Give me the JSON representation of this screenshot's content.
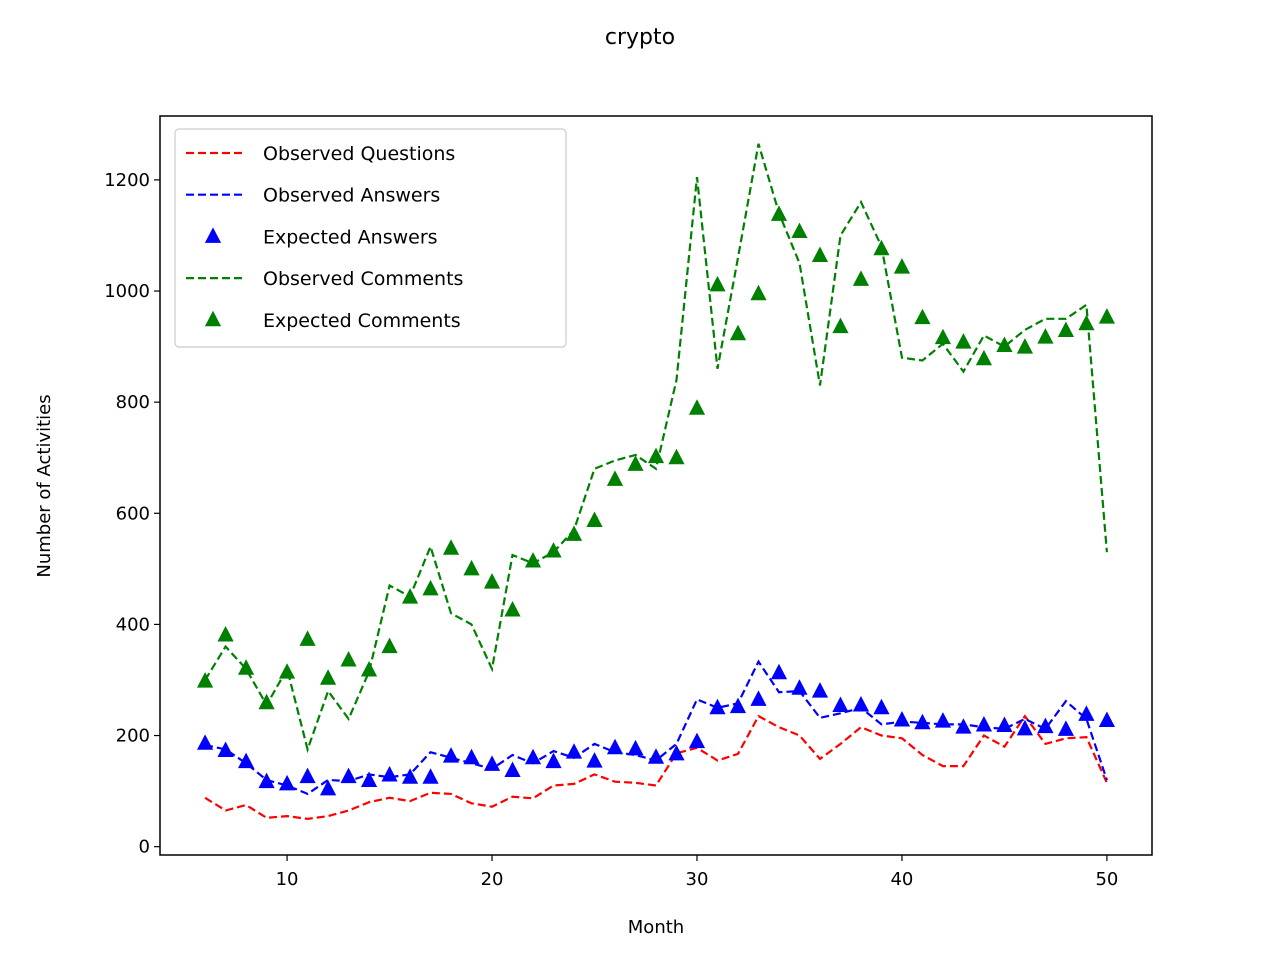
{
  "chart_data": {
    "type": "line",
    "title": "crypto",
    "xlabel": "Month",
    "ylabel": "Number of Activities",
    "xlim": [
      3.8,
      52.2
    ],
    "ylim": [
      -15,
      1315
    ],
    "xticks": [
      10,
      20,
      30,
      40,
      50
    ],
    "yticks": [
      0,
      200,
      400,
      600,
      800,
      1000,
      1200
    ],
    "grid": false,
    "legend_position": "upper left",
    "x": [
      6,
      7,
      8,
      9,
      10,
      11,
      12,
      13,
      14,
      15,
      16,
      17,
      18,
      19,
      20,
      21,
      22,
      23,
      24,
      25,
      26,
      27,
      28,
      29,
      30,
      31,
      32,
      33,
      34,
      35,
      36,
      37,
      38,
      39,
      40,
      41,
      42,
      43,
      44,
      45,
      46,
      47,
      48,
      49,
      50
    ],
    "series": [
      {
        "name": "Observed Questions",
        "style": "dashed-line",
        "color": "#ff0000",
        "values": [
          88,
          65,
          75,
          52,
          55,
          50,
          55,
          65,
          80,
          88,
          82,
          97,
          95,
          78,
          72,
          90,
          87,
          110,
          113,
          130,
          117,
          115,
          110,
          168,
          178,
          155,
          167,
          235,
          215,
          200,
          158,
          185,
          215,
          200,
          195,
          165,
          145,
          145,
          200,
          180,
          235,
          185,
          195,
          197,
          115
        ]
      },
      {
        "name": "Observed Answers",
        "style": "dashed-line",
        "color": "#0000ff",
        "values": [
          183,
          175,
          150,
          120,
          110,
          95,
          120,
          118,
          130,
          125,
          130,
          170,
          160,
          150,
          140,
          165,
          150,
          172,
          160,
          185,
          170,
          165,
          155,
          185,
          265,
          250,
          258,
          333,
          278,
          280,
          232,
          240,
          250,
          220,
          225,
          223,
          220,
          220,
          215,
          212,
          230,
          212,
          262,
          230,
          120
        ]
      },
      {
        "name": "Expected Answers",
        "style": "triangle-markers",
        "color": "#0000ff",
        "values": [
          186,
          173,
          153,
          117,
          113,
          126,
          104,
          126,
          119,
          129,
          125,
          125,
          163,
          160,
          148,
          137,
          160,
          153,
          170,
          154,
          178,
          176,
          161,
          167,
          189,
          250,
          252,
          265,
          313,
          285,
          280,
          254,
          255,
          250,
          228,
          223,
          226,
          215,
          219,
          218,
          212,
          216,
          211,
          238,
          227
        ]
      },
      {
        "name": "Observed Comments",
        "style": "dashed-line",
        "color": "#008000",
        "values": [
          300,
          360,
          320,
          255,
          320,
          175,
          280,
          230,
          315,
          470,
          450,
          540,
          420,
          400,
          320,
          525,
          510,
          530,
          570,
          680,
          695,
          705,
          680,
          840,
          1205,
          860,
          1060,
          1265,
          1140,
          1050,
          830,
          1100,
          1160,
          1080,
          880,
          875,
          905,
          855,
          920,
          900,
          930,
          950,
          950,
          975,
          530
        ]
      },
      {
        "name": "Expected Comments",
        "style": "triangle-markers",
        "color": "#008000",
        "values": [
          298,
          381,
          321,
          259,
          314,
          373,
          303,
          336,
          318,
          360,
          449,
          464,
          537,
          500,
          476,
          426,
          514,
          532,
          562,
          587,
          661,
          688,
          702,
          700,
          789,
          1011,
          923,
          995,
          1138,
          1107,
          1064,
          936,
          1021,
          1076,
          1043,
          952,
          916,
          908,
          878,
          902,
          899,
          917,
          929,
          941,
          953
        ]
      }
    ]
  }
}
